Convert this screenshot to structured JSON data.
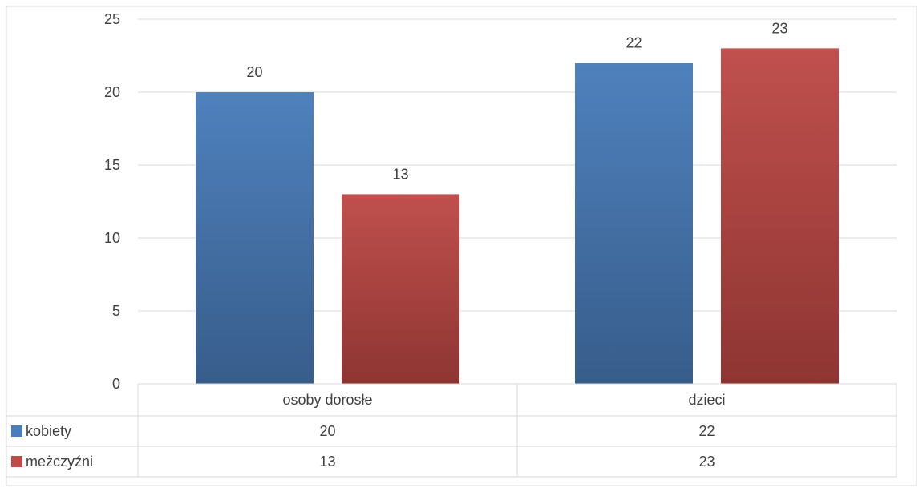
{
  "chart_data": {
    "type": "bar",
    "categories": [
      "osoby dorosłe",
      "dzieci"
    ],
    "series": [
      {
        "name": "kobiety",
        "values": [
          20,
          22
        ],
        "color": "#4a7ebb"
      },
      {
        "name": "meżczyźni",
        "values": [
          13,
          23
        ],
        "color": "#be4b48"
      }
    ],
    "ylim": [
      0,
      25
    ],
    "yticks": [
      0,
      5,
      10,
      15,
      20,
      25
    ],
    "grid": true,
    "legend": "data-table",
    "data_labels": true
  }
}
